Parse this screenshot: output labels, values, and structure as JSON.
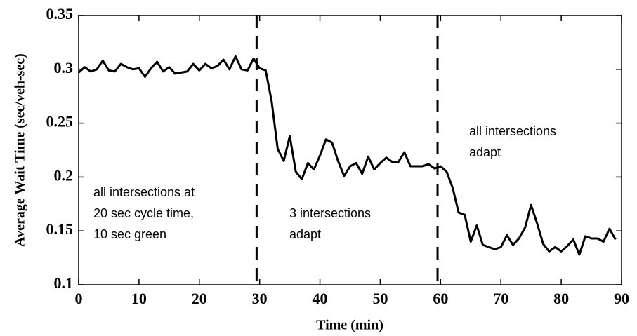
{
  "chart_data": {
    "type": "line",
    "xlabel": "Time (min)",
    "ylabel": "Average Wait Time (sec/veh-sec)",
    "x": [
      0,
      1,
      2,
      3,
      4,
      5,
      6,
      7,
      8,
      9,
      10,
      11,
      12,
      13,
      14,
      15,
      16,
      17,
      18,
      19,
      20,
      21,
      22,
      23,
      24,
      25,
      26,
      27,
      28,
      29,
      30,
      31,
      32,
      33,
      34,
      35,
      36,
      37,
      38,
      39,
      40,
      41,
      42,
      43,
      44,
      45,
      46,
      47,
      48,
      49,
      50,
      51,
      52,
      53,
      54,
      55,
      56,
      57,
      58,
      59,
      60,
      61,
      62,
      63,
      64,
      65,
      66,
      67,
      68,
      69,
      70,
      71,
      72,
      73,
      74,
      75,
      76,
      77,
      78,
      79,
      80,
      81,
      82,
      83,
      84,
      85,
      86,
      87,
      88,
      89
    ],
    "series": [
      {
        "color": "#000000",
        "values": [
          0.297,
          0.302,
          0.298,
          0.3,
          0.308,
          0.299,
          0.298,
          0.305,
          0.302,
          0.3,
          0.301,
          0.293,
          0.301,
          0.307,
          0.298,
          0.302,
          0.296,
          0.297,
          0.298,
          0.305,
          0.299,
          0.305,
          0.301,
          0.303,
          0.309,
          0.3,
          0.312,
          0.3,
          0.299,
          0.31,
          0.301,
          0.299,
          0.27,
          0.226,
          0.215,
          0.238,
          0.205,
          0.198,
          0.213,
          0.207,
          0.22,
          0.235,
          0.232,
          0.215,
          0.201,
          0.21,
          0.213,
          0.203,
          0.219,
          0.207,
          0.213,
          0.218,
          0.214,
          0.214,
          0.223,
          0.21,
          0.21,
          0.21,
          0.212,
          0.208,
          0.21,
          0.205,
          0.19,
          0.167,
          0.165,
          0.14,
          0.155,
          0.137,
          0.135,
          0.133,
          0.135,
          0.146,
          0.137,
          0.143,
          0.153,
          0.174,
          0.157,
          0.138,
          0.131,
          0.135,
          0.131,
          0.136,
          0.142,
          0.128,
          0.145,
          0.143,
          0.143,
          0.14,
          0.152,
          0.142
        ]
      }
    ],
    "vlines": [
      29.5,
      59.5
    ],
    "annotations": [
      {
        "lines": [
          "all intersections at",
          "20 sec cycle time,",
          "10 sec green"
        ]
      },
      {
        "lines": [
          "3 intersections",
          "adapt"
        ]
      },
      {
        "lines": [
          "all intersections",
          "adapt"
        ]
      }
    ],
    "xlim": [
      0,
      90
    ],
    "xticks": [
      0,
      10,
      20,
      30,
      40,
      50,
      60,
      70,
      80,
      90
    ],
    "ylim": [
      0.1,
      0.35
    ],
    "yticks": [
      0.1,
      0.15,
      0.2,
      0.25,
      0.3,
      0.35
    ]
  }
}
